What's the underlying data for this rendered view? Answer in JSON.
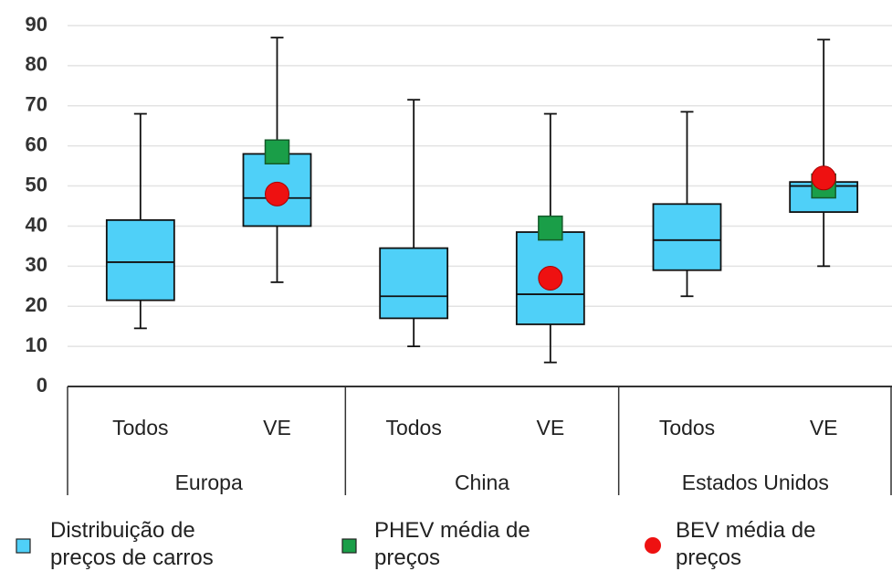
{
  "chart_data": {
    "type": "box",
    "categories": [
      "Todos",
      "VE",
      "Todos",
      "VE",
      "Todos",
      "VE"
    ],
    "groups": [
      "Europa",
      "China",
      "Estados Unidos"
    ],
    "ylim": [
      0,
      90
    ],
    "yticks": [
      0,
      10,
      20,
      30,
      40,
      50,
      60,
      70,
      80,
      90
    ],
    "grid": true,
    "series": [
      {
        "name": "Distribuição de preços de carros",
        "color": "#4fd0f8",
        "kind": "box",
        "min": [
          14.5,
          26,
          10,
          6,
          22.5,
          30
        ],
        "q1": [
          21.5,
          40,
          17,
          15.5,
          29,
          43.5
        ],
        "median": [
          31,
          47,
          22.5,
          23,
          36.5,
          50
        ],
        "q3": [
          41.5,
          58,
          34.5,
          38.5,
          45.5,
          51
        ],
        "max": [
          68,
          87,
          71.5,
          68,
          68.5,
          86.5
        ]
      },
      {
        "name": "PHEV média de preços",
        "color": "#1a9e48",
        "kind": "square",
        "values": [
          null,
          58.5,
          null,
          39.5,
          null,
          50
        ]
      },
      {
        "name": "BEV média de preços",
        "color": "#ee1111",
        "kind": "circle",
        "values": [
          null,
          48,
          null,
          27,
          null,
          52
        ]
      }
    ]
  }
}
